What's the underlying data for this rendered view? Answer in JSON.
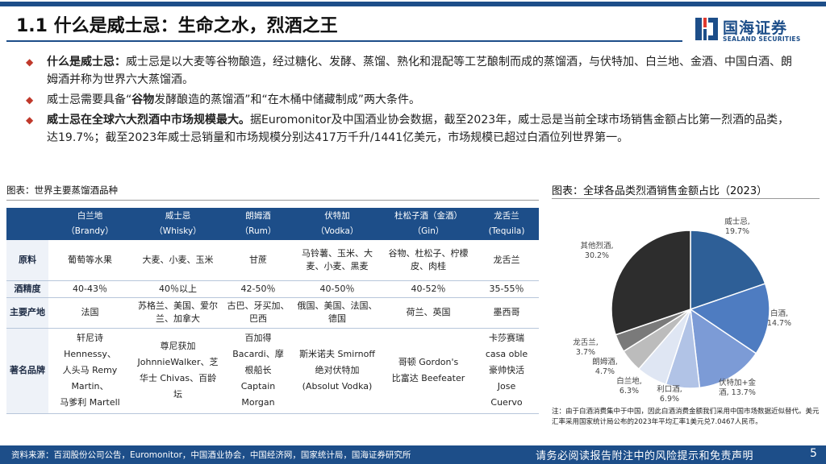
{
  "slide": {
    "title": "1.1 什么是威士忌：生命之水，烈酒之王",
    "page_number": "5"
  },
  "logo": {
    "cn": "国海证券",
    "en": "SEALAND SECURITIES",
    "icon": "sealand-logo-mark"
  },
  "bullets": [
    {
      "lead": "什么是威士忌：",
      "text": "威士忌是以大麦等谷物酿造，经过糖化、发酵、蒸馏、熟化和混配等工艺酿制而成的蒸馏酒，与伏特加、白兰地、金酒、中国白酒、朗姆酒并称为世界六大蒸馏酒。"
    },
    {
      "pre": "威士忌需要具备“",
      "bold": "谷物",
      "post": "发酵酿造的蒸馏酒”和“在木桶中储藏制成”两大条件。"
    },
    {
      "lead": "威士忌在全球六大烈酒中市场规模最大。",
      "text": "据Euromonitor及中国酒业协会数据，截至2023年，威士忌是当前全球市场销售金额占比第一烈酒的品类，达19.7%；截至2023年威士忌销量和市场规模分别达417万千升/1441亿美元，市场规模已超过白酒位列世界第一。"
    }
  ],
  "table": {
    "caption": "图表：世界主要蒸馏酒品种",
    "headers": [
      {
        "cn": "",
        "en": ""
      },
      {
        "cn": "白兰地",
        "en": "（Brandy）"
      },
      {
        "cn": "威士忌",
        "en": "（Whisky）"
      },
      {
        "cn": "朗姆酒",
        "en": "（Rum）"
      },
      {
        "cn": "伏特加",
        "en": "（Vodka）"
      },
      {
        "cn": "杜松子酒（金酒）",
        "en": "（Gin）"
      },
      {
        "cn": "龙舌兰",
        "en": "(Tequila)"
      }
    ],
    "rows": [
      {
        "label": "原料",
        "cells": [
          "葡萄等水果",
          "大麦、小麦、玉米",
          "甘蔗",
          "马铃薯、玉米、大麦、小麦、黑麦",
          "谷物、杜松子、柠檬皮、肉桂",
          "龙舌兰"
        ]
      },
      {
        "label": "酒精度",
        "cells": [
          "40-43％",
          "40％以上",
          "42-50％",
          "40-50％",
          "40-52％",
          "35-55％"
        ]
      },
      {
        "label": "主要产地",
        "cells": [
          "法国",
          "苏格兰、美国、爱尔兰、加拿大",
          "古巴、牙买加、巴西",
          "俄国、美国、法国、德国",
          "荷兰、英国",
          "墨西哥"
        ]
      },
      {
        "label": "著名品牌",
        "cells": [
          [
            "轩尼诗",
            "Hennessy、",
            "人头马 Remy",
            "Martin、",
            "马爹利 Martell"
          ],
          [
            "尊尼获加",
            "JohnnieWalker、芝",
            "华士 Chivas、百龄",
            "坛"
          ],
          [
            "百加得",
            "Bacardi、摩",
            "根船长",
            "Captain",
            "Morgan"
          ],
          [
            "斯米诺夫 Smirnoff",
            "绝对伏特加",
            "(Absolut Vodka)"
          ],
          [
            "哥顿 Gordon's",
            "比富达 Beefeater"
          ],
          [
            "卡莎赛瑞",
            "casa oble",
            "豪帅快活",
            "Jose",
            "Cuervo"
          ]
        ]
      }
    ]
  },
  "chart_caption": "图表：全球各品类烈酒销售金额占比（2023）",
  "chart_data": {
    "type": "pie",
    "title": "",
    "slices": [
      {
        "name": "威士忌",
        "value": 19.7,
        "label": "19.7%",
        "color": "#2e5f97"
      },
      {
        "name": "白酒",
        "value": 14.7,
        "label": "14.7%",
        "color": "#4e7cc1"
      },
      {
        "name": "伏特加+金酒",
        "value": 13.7,
        "label": "13.7%",
        "color": "#7c9bd6"
      },
      {
        "name": "利口酒",
        "value": 6.9,
        "label": "6.9%",
        "color": "#b1c3e6"
      },
      {
        "name": "白兰地",
        "value": 6.3,
        "label": "6.3%",
        "color": "#dfe6f3"
      },
      {
        "name": "朗姆酒",
        "value": 4.7,
        "label": "4.7%",
        "color": "#bcbcbc"
      },
      {
        "name": "龙舌兰",
        "value": 3.7,
        "label": "3.7%",
        "color": "#7a7a7a"
      },
      {
        "name": "其他烈酒",
        "value": 30.2,
        "label": "30.2%",
        "color": "#2d2d2d"
      }
    ],
    "label_names_display": [
      "威士忌,",
      "白酒,",
      "伏特加+金",
      "利口酒,",
      "白兰地,",
      "朗姆酒,",
      "龙舌兰,",
      "其他烈酒,"
    ],
    "label_second_display": [
      "19.7%",
      "14.7%",
      "酒, 13.7%",
      "6.9%",
      "6.3%",
      "4.7%",
      "3.7%",
      "30.2%"
    ]
  },
  "note": "注：由于白酒消费集中于中国，因此白酒消费金额我们采用中国市场数据近似替代。美元汇率采用国家统计局公布的2023年平均汇率1美元兑7.0467人民币。",
  "footer": {
    "source": "资料来源：百润股份公司公告，Euromonitor，中国酒业协会，中国经济网，国家统计局，国海证券研究所",
    "disclaimer": "请务必阅读报告附注中的风险提示和免责声明"
  },
  "colors": {
    "brand_blue": "#1d4e89",
    "bullet_red": "#c0392b"
  }
}
